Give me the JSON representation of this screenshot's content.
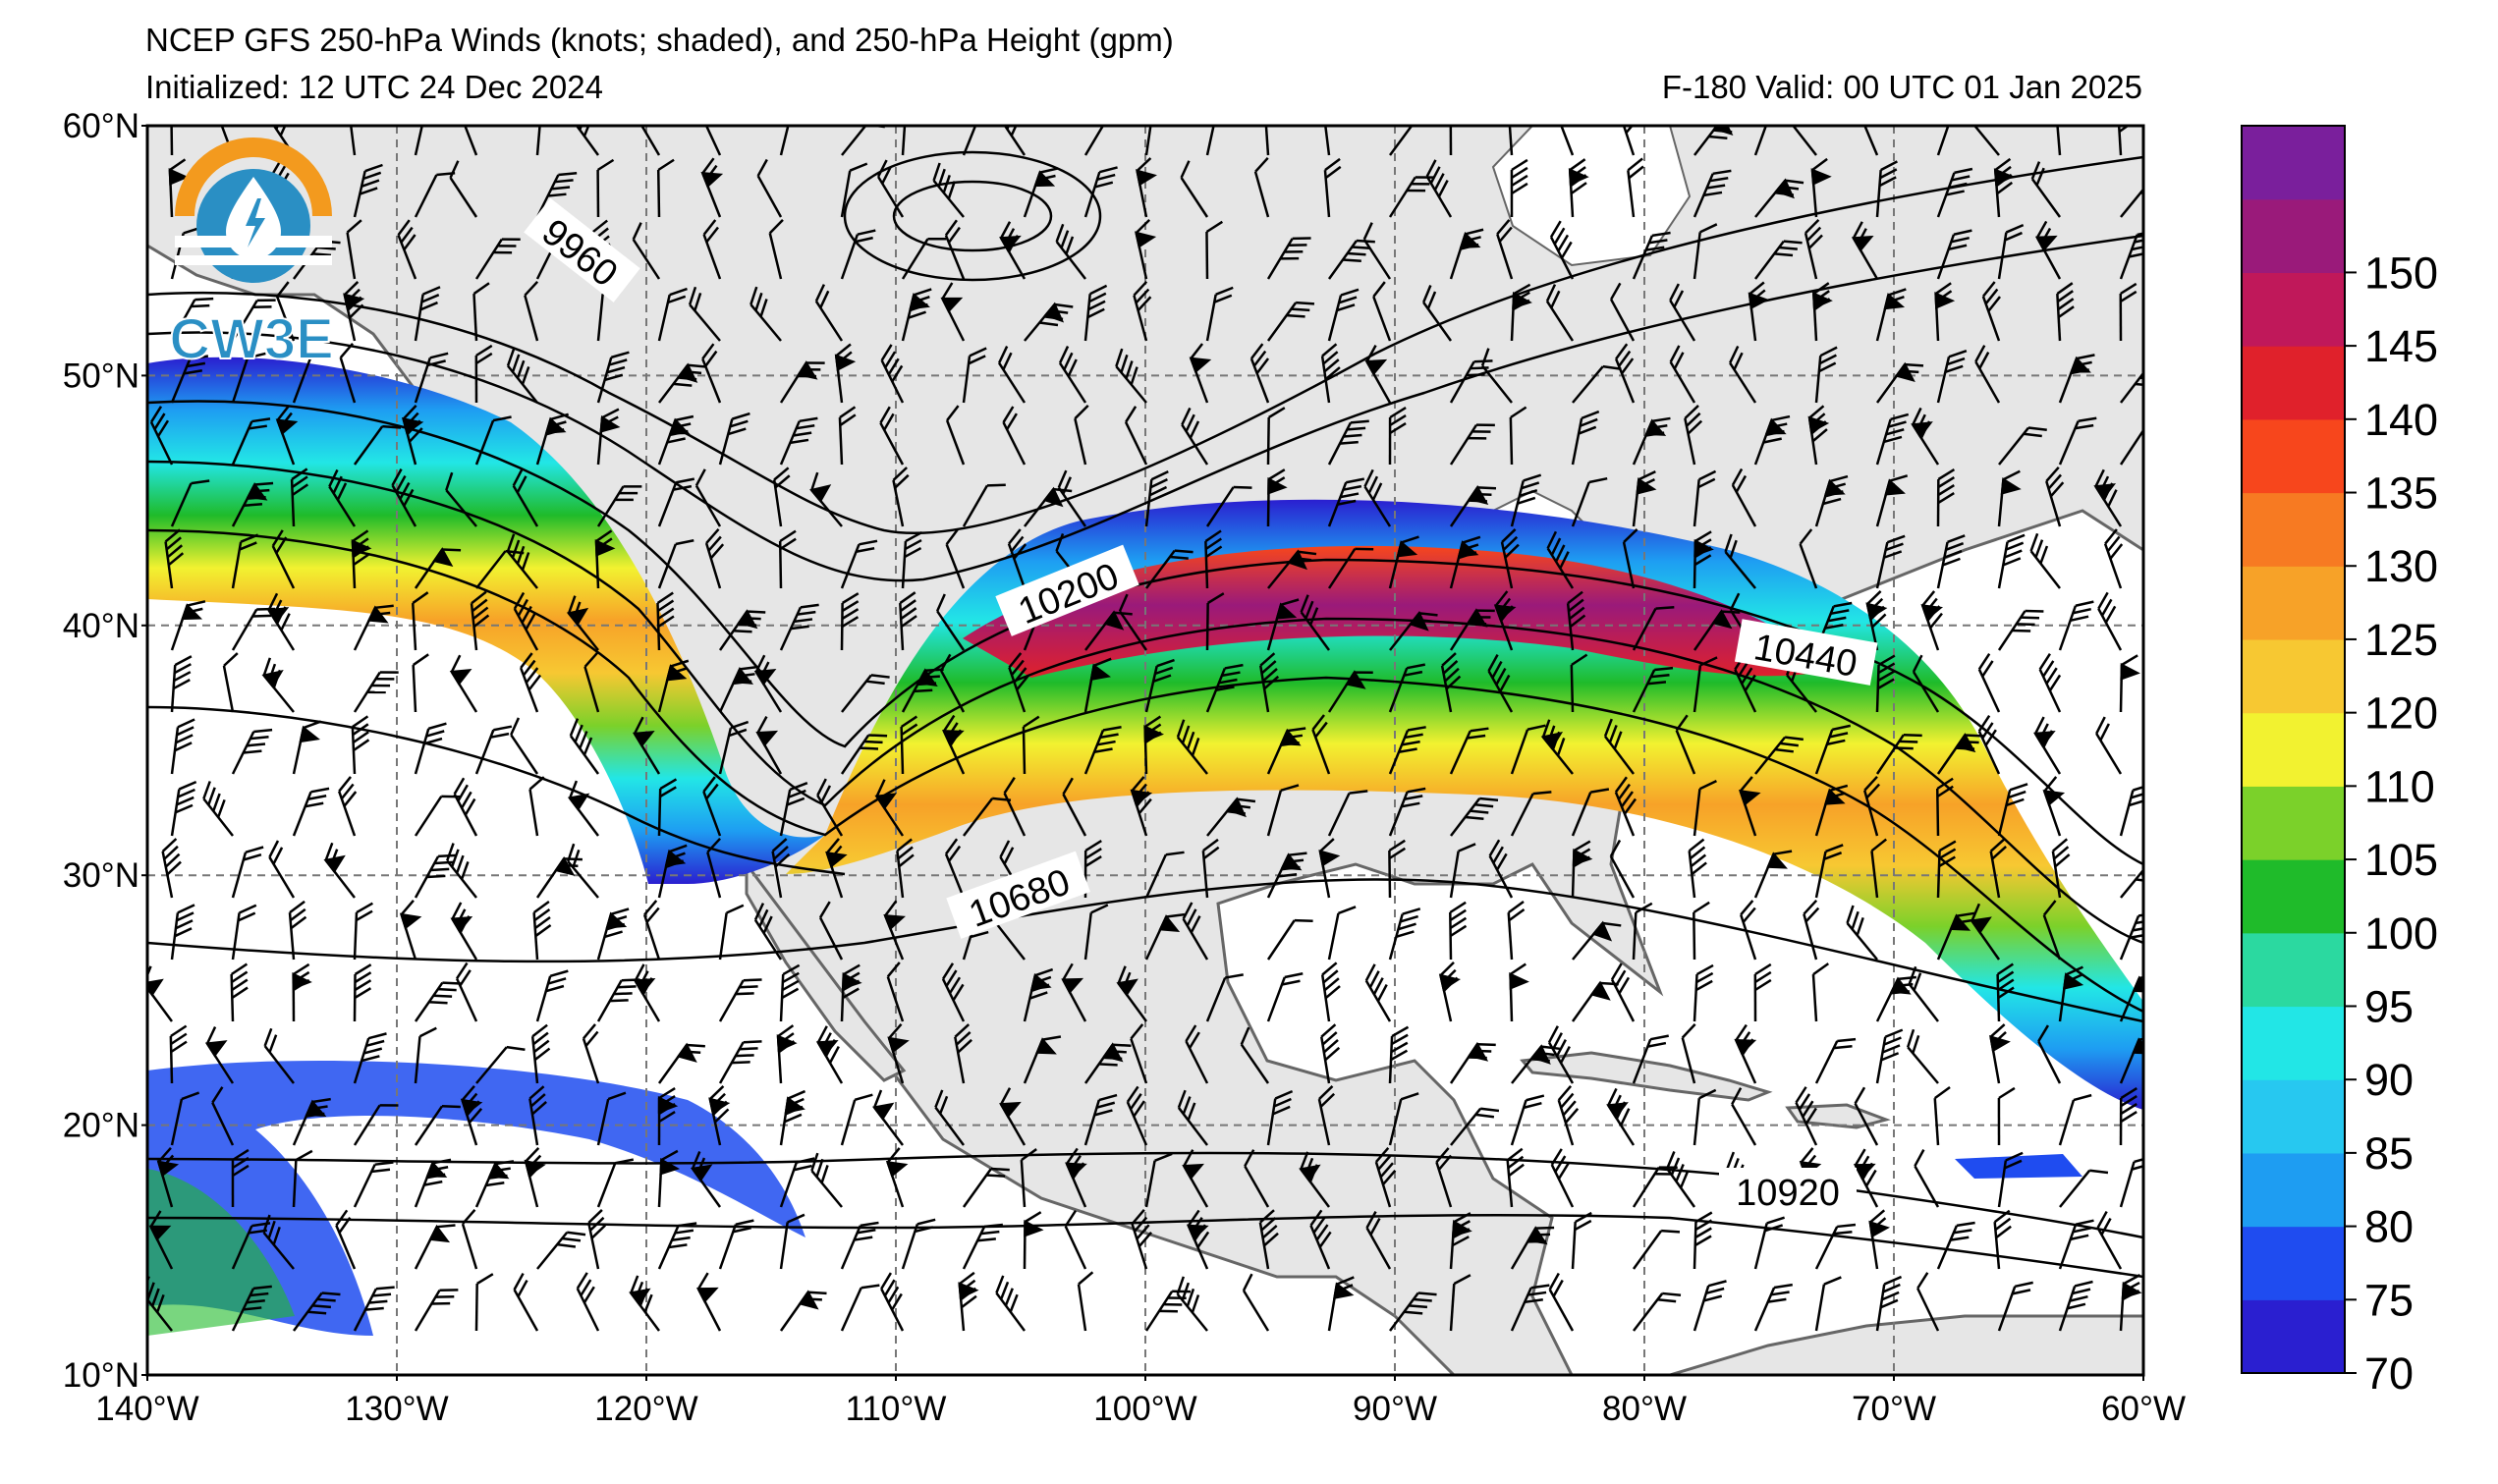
{
  "title": {
    "line1": "NCEP GFS 250-hPa Winds (knots; shaded), and 250-hPa Height (gpm)",
    "initialized": "Initialized: 12 UTC 24 Dec 2024",
    "valid": "F-180  Valid: 00 UTC 01 Jan 2025"
  },
  "logo": {
    "text": "CW3E",
    "icon": "lightning-droplet-icon"
  },
  "map_extent": {
    "lon": [
      -140,
      -60
    ],
    "lat": [
      10,
      60
    ]
  },
  "axes": {
    "lat_labels": [
      "60°N",
      "50°N",
      "40°N",
      "30°N",
      "20°N",
      "10°N"
    ],
    "lon_labels": [
      "140°W",
      "130°W",
      "120°W",
      "110°W",
      "100°W",
      "90°W",
      "80°W",
      "70°W",
      "60°W"
    ]
  },
  "contour_labels": [
    "9960",
    "10200",
    "10440",
    "10680",
    "10920"
  ],
  "colorbar": {
    "ticks": [
      "70",
      "75",
      "80",
      "85",
      "90",
      "95",
      "100",
      "105",
      "110",
      "120",
      "125",
      "130",
      "135",
      "140",
      "145",
      "150"
    ],
    "colors": [
      "#2a1fd0",
      "#1f4cf0",
      "#1e9df2",
      "#27c8f0",
      "#22e6e6",
      "#2bd9a0",
      "#1fbb2a",
      "#7bd12a",
      "#f2f230",
      "#f7c832",
      "#f7a228",
      "#f77a22",
      "#f7461c",
      "#e0212b",
      "#c0185a",
      "#9a1a7a",
      "#7a1f9c"
    ]
  }
}
